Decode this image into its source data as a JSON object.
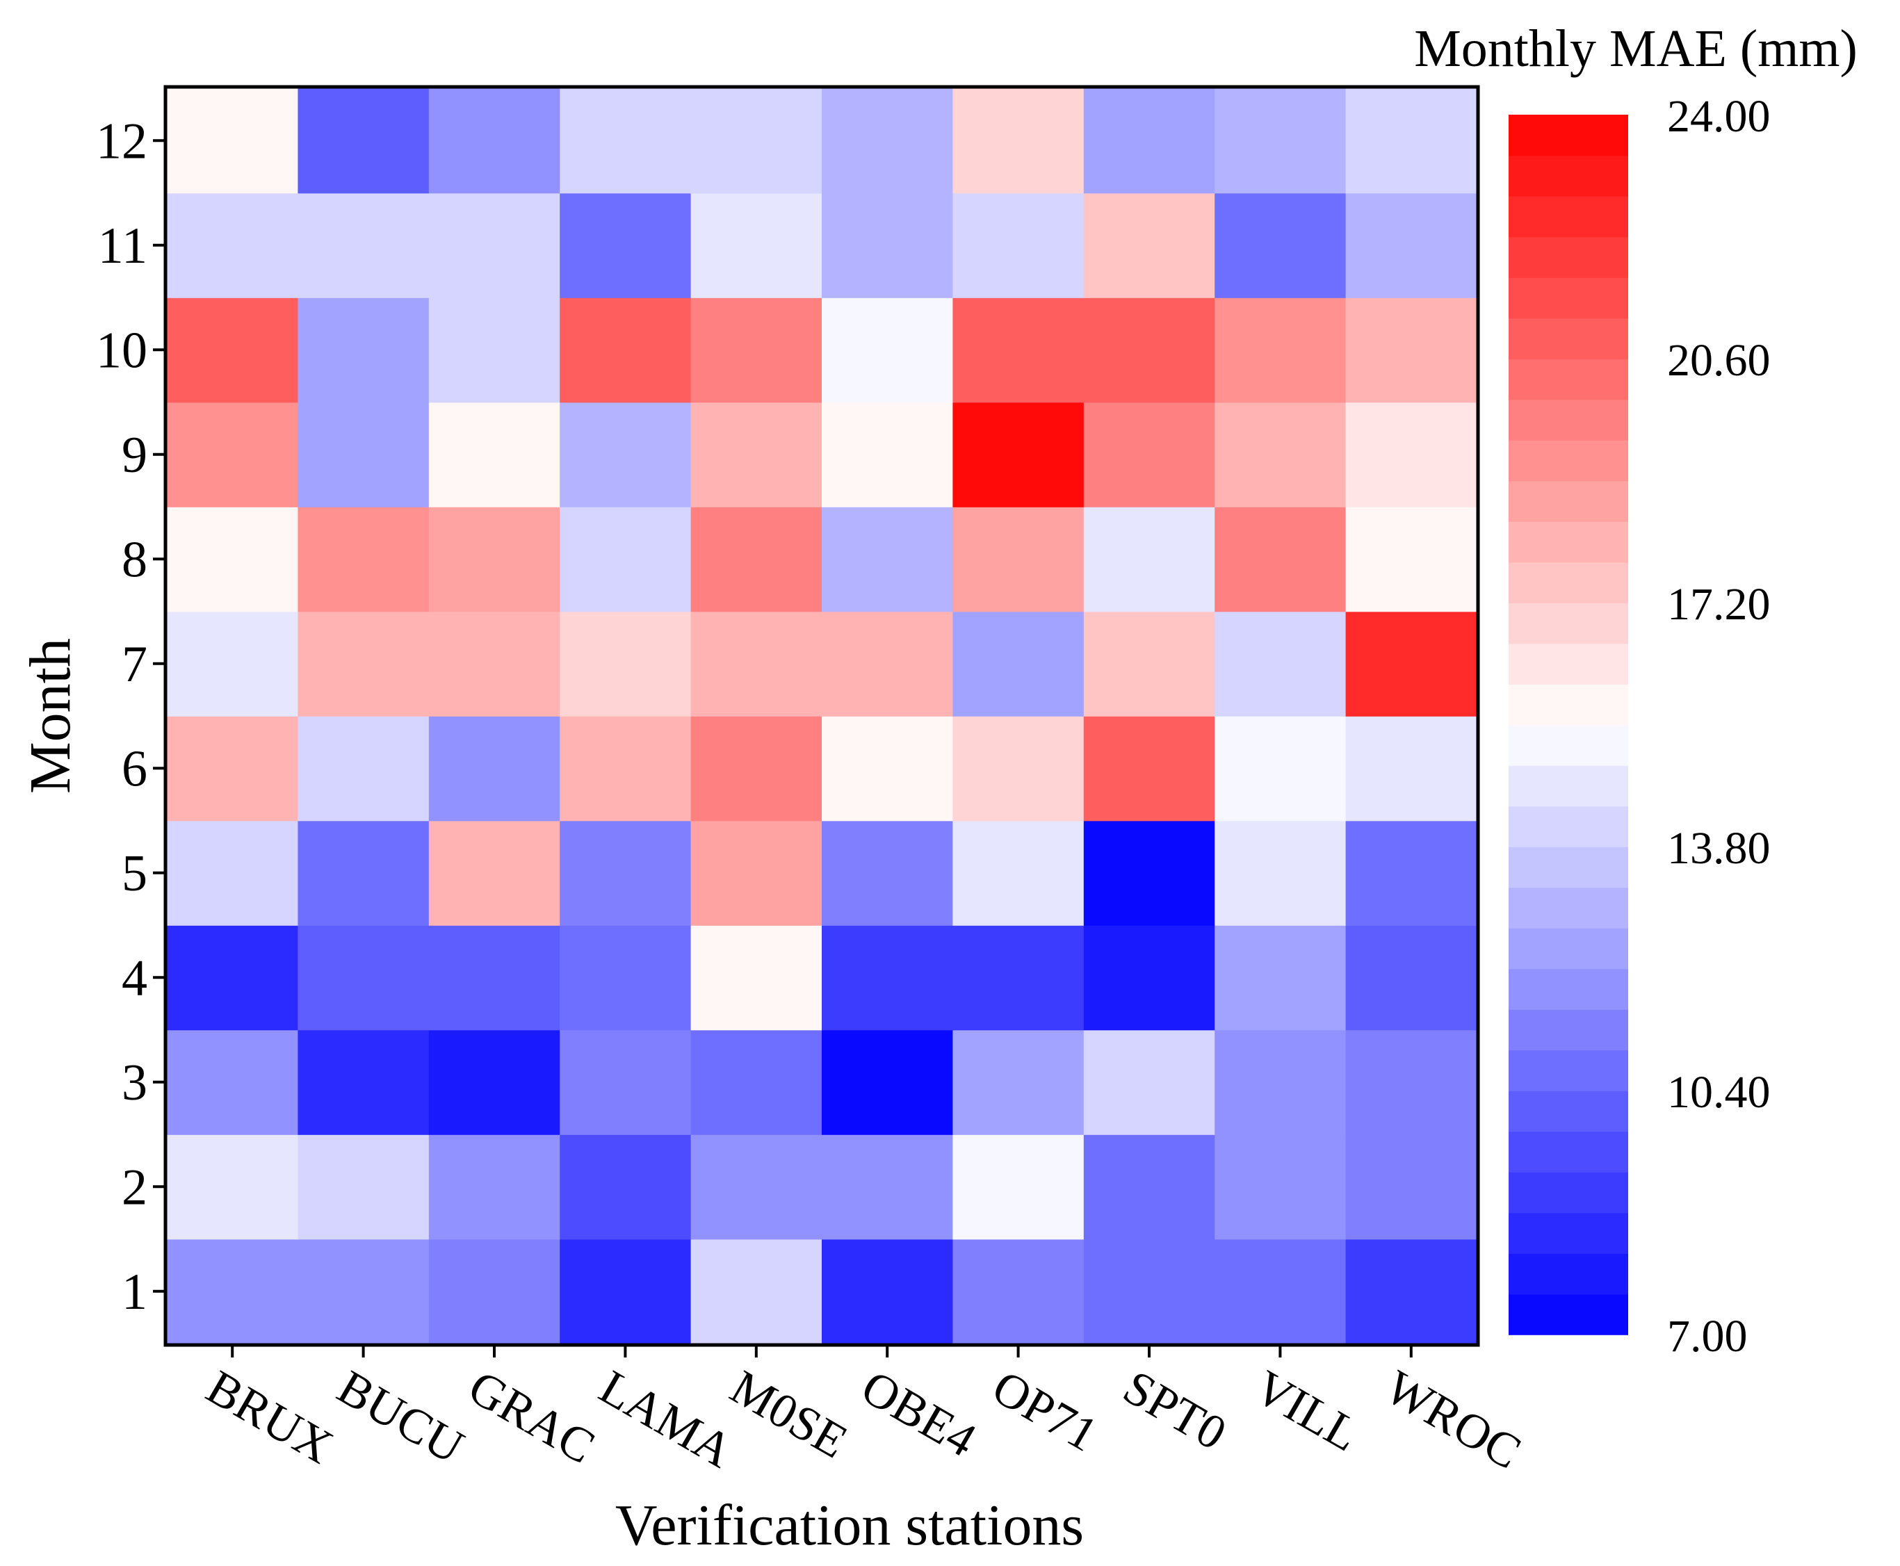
{
  "chart_data": {
    "type": "heatmap",
    "title": "",
    "colorbar_label": "Monthly MAE (mm)",
    "xlabel": "Verification stations",
    "ylabel": "Month",
    "x_categories": [
      "BRUX",
      "BUCU",
      "GRAC",
      "LAMA",
      "M0SE",
      "OBE4",
      "OP71",
      "SPT0",
      "VILL",
      "WROC"
    ],
    "y_categories": [
      "1",
      "2",
      "3",
      "4",
      "5",
      "6",
      "7",
      "8",
      "9",
      "10",
      "11",
      "12"
    ],
    "values_by_month": [
      [
        11.6,
        12.0,
        11.2,
        8.4,
        14.2,
        8.4,
        11.2,
        10.4,
        10.4,
        9.2
      ],
      [
        14.8,
        14.2,
        11.8,
        9.4,
        11.8,
        11.8,
        15.4,
        10.8,
        12.0,
        11.2
      ],
      [
        11.6,
        8.6,
        7.6,
        11.0,
        10.6,
        7.0,
        12.2,
        14.2,
        11.8,
        11.2
      ],
      [
        8.6,
        10.0,
        10.0,
        10.4,
        16.0,
        9.2,
        9.2,
        8.0,
        12.6,
        10.0
      ],
      [
        14.2,
        10.8,
        17.8,
        11.0,
        18.6,
        11.2,
        14.8,
        7.4,
        14.8,
        10.6
      ],
      [
        18.2,
        14.2,
        11.6,
        18.0,
        19.6,
        16.0,
        16.8,
        21.0,
        15.4,
        14.8
      ],
      [
        14.8,
        17.8,
        17.8,
        16.8,
        17.8,
        17.8,
        12.2,
        17.6,
        14.2,
        22.6
      ],
      [
        16.0,
        19.4,
        18.8,
        13.8,
        19.8,
        12.8,
        18.8,
        14.8,
        19.6,
        16.0
      ],
      [
        19.4,
        12.2,
        16.0,
        13.2,
        18.0,
        16.0,
        24.0,
        19.6,
        18.0,
        16.6
      ],
      [
        20.6,
        12.2,
        13.8,
        20.6,
        19.6,
        15.4,
        20.6,
        21.0,
        19.4,
        18.2
      ],
      [
        14.0,
        13.8,
        13.8,
        10.8,
        14.8,
        13.2,
        14.2,
        17.4,
        10.8,
        13.2
      ],
      [
        16.0,
        10.0,
        11.8,
        14.2,
        14.2,
        13.2,
        16.8,
        12.2,
        13.2,
        13.8
      ]
    ],
    "colorbar": {
      "min": 7.0,
      "max": 24.0,
      "n_colors": 30,
      "ticks": [
        24.0,
        20.6,
        17.2,
        13.8,
        10.4,
        7.0
      ],
      "tick_labels": [
        "24.00",
        "20.60",
        "17.20",
        "13.80",
        "10.40",
        "7.00"
      ],
      "colors": {
        "low": "#0000ff",
        "mid": "#ffffff",
        "high": "#ff0000"
      }
    }
  }
}
